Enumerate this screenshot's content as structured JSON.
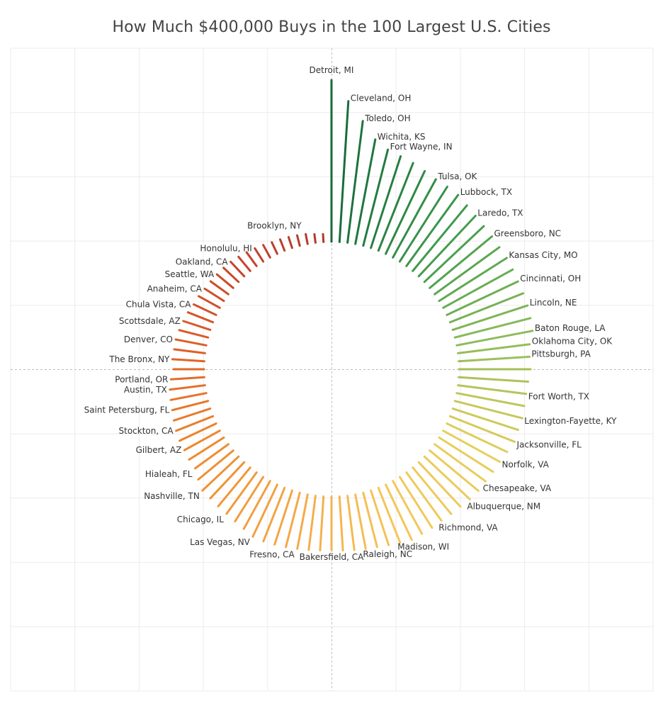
{
  "title": "How Much $400,000 Buys in the 100 Largest U.S. Cities",
  "chart_data": {
    "type": "radial-bar",
    "title": "How Much $400,000 Buys in the 100 Largest U.S. Cities",
    "xlabel": "",
    "ylabel": "",
    "grid": true,
    "legend": "none",
    "value_note": "relative bar length (no axis shown); ranked descending clockwise from top",
    "color_stops": [
      "#17693a",
      "#3d9a4c",
      "#8dbb5a",
      "#e6cf5c",
      "#f5c55a",
      "#f4a545",
      "#ee8a2e",
      "#de6126",
      "#c6452a",
      "#b03a2a"
    ],
    "bars": [
      {
        "rank": 1,
        "label": "Detroit, MI",
        "value": 228
      },
      {
        "rank": 2,
        "label": "Cleveland, OH",
        "value": 199
      },
      {
        "rank": 3,
        "label": "Toledo, OH",
        "value": 173
      },
      {
        "rank": 4,
        "label": "Wichita, KS",
        "value": 150
      },
      {
        "rank": 5,
        "label": "Fort Wayne, IN",
        "value": 140
      },
      {
        "rank": 6,
        "label": "",
        "value": 136
      },
      {
        "rank": 7,
        "label": "",
        "value": 133
      },
      {
        "rank": 8,
        "label": "",
        "value": 129
      },
      {
        "rank": 9,
        "label": "Tulsa, OK",
        "value": 126
      },
      {
        "rank": 10,
        "label": "",
        "value": 125
      },
      {
        "rank": 11,
        "label": "Lubbock, TX",
        "value": 124
      },
      {
        "rank": 12,
        "label": "",
        "value": 120
      },
      {
        "rank": 13,
        "label": "Laredo, TX",
        "value": 117
      },
      {
        "rank": 14,
        "label": "",
        "value": 115
      },
      {
        "rank": 15,
        "label": "Greensboro, NC",
        "value": 114
      },
      {
        "rank": 16,
        "label": "",
        "value": 113
      },
      {
        "rank": 17,
        "label": "Kansas City, MO",
        "value": 113
      },
      {
        "rank": 18,
        "label": "",
        "value": 112
      },
      {
        "rank": 19,
        "label": "Cincinnati, OH",
        "value": 111
      },
      {
        "rank": 20,
        "label": "",
        "value": 111
      },
      {
        "rank": 21,
        "label": "Lincoln, NE",
        "value": 111
      },
      {
        "rank": 22,
        "label": "",
        "value": 110
      },
      {
        "rank": 23,
        "label": "Baton Rouge, LA",
        "value": 109
      },
      {
        "rank": 24,
        "label": "Oklahoma City, OK",
        "value": 102
      },
      {
        "rank": 25,
        "label": "Pittsburgh, PA",
        "value": 100
      },
      {
        "rank": 26,
        "label": "",
        "value": 101
      },
      {
        "rank": 27,
        "label": "",
        "value": 98
      },
      {
        "rank": 28,
        "label": "Fort Worth, TX",
        "value": 97
      },
      {
        "rank": 29,
        "label": "",
        "value": 97
      },
      {
        "rank": 30,
        "label": "Lexington-Fayette, KY",
        "value": 98
      },
      {
        "rank": 31,
        "label": "",
        "value": 97
      },
      {
        "rank": 32,
        "label": "Jacksonville, FL",
        "value": 98
      },
      {
        "rank": 33,
        "label": "",
        "value": 94
      },
      {
        "rank": 34,
        "label": "Norfolk, VA",
        "value": 91
      },
      {
        "rank": 35,
        "label": "",
        "value": 90
      },
      {
        "rank": 36,
        "label": "Chesapeake, VA",
        "value": 89
      },
      {
        "rank": 37,
        "label": "",
        "value": 89
      },
      {
        "rank": 38,
        "label": "Albuquerque, NM",
        "value": 88
      },
      {
        "rank": 39,
        "label": "",
        "value": 86
      },
      {
        "rank": 40,
        "label": "",
        "value": 85
      },
      {
        "rank": 41,
        "label": "Richmond, VA",
        "value": 84
      },
      {
        "rank": 42,
        "label": "",
        "value": 85
      },
      {
        "rank": 43,
        "label": "",
        "value": 85
      },
      {
        "rank": 44,
        "label": "Madison, WI",
        "value": 86
      },
      {
        "rank": 45,
        "label": "",
        "value": 83
      },
      {
        "rank": 46,
        "label": "",
        "value": 81
      },
      {
        "rank": 47,
        "label": "Raleigh, NC",
        "value": 79
      },
      {
        "rank": 48,
        "label": "",
        "value": 78
      },
      {
        "rank": 49,
        "label": "",
        "value": 77
      },
      {
        "rank": 50,
        "label": "",
        "value": 76
      },
      {
        "rank": 51,
        "label": "Bakersfield, CA",
        "value": 75
      },
      {
        "rank": 52,
        "label": "",
        "value": 76
      },
      {
        "rank": 53,
        "label": "",
        "value": 77
      },
      {
        "rank": 54,
        "label": "Fresno, CA",
        "value": 78
      },
      {
        "rank": 55,
        "label": "",
        "value": 79
      },
      {
        "rank": 56,
        "label": "",
        "value": 80
      },
      {
        "rank": 57,
        "label": "",
        "value": 81
      },
      {
        "rank": 58,
        "label": "Las Vegas, NV",
        "value": 81
      },
      {
        "rank": 59,
        "label": "",
        "value": 77
      },
      {
        "rank": 60,
        "label": "",
        "value": 74
      },
      {
        "rank": 61,
        "label": "Chicago, IL",
        "value": 72
      },
      {
        "rank": 62,
        "label": "",
        "value": 71
      },
      {
        "rank": 63,
        "label": "",
        "value": 70
      },
      {
        "rank": 64,
        "label": "Nashville, TN",
        "value": 70
      },
      {
        "rank": 65,
        "label": "",
        "value": 64
      },
      {
        "rank": 66,
        "label": "Hialeah, FL",
        "value": 58
      },
      {
        "rank": 67,
        "label": "",
        "value": 58
      },
      {
        "rank": 68,
        "label": "Gilbert, AZ",
        "value": 57
      },
      {
        "rank": 69,
        "label": "",
        "value": 57
      },
      {
        "rank": 70,
        "label": "Stockton, CA",
        "value": 56
      },
      {
        "rank": 71,
        "label": "",
        "value": 54
      },
      {
        "rank": 72,
        "label": "Saint Petersburg, FL",
        "value": 52
      },
      {
        "rank": 73,
        "label": "",
        "value": 51
      },
      {
        "rank": 74,
        "label": "Austin, TX",
        "value": 50
      },
      {
        "rank": 75,
        "label": "Portland, OR",
        "value": 47
      },
      {
        "rank": 76,
        "label": "",
        "value": 43
      },
      {
        "rank": 77,
        "label": "The Bronx, NY",
        "value": 45
      },
      {
        "rank": 78,
        "label": "",
        "value": 44
      },
      {
        "rank": 79,
        "label": "Denver, CO",
        "value": 44
      },
      {
        "rank": 80,
        "label": "",
        "value": 42
      },
      {
        "rank": 81,
        "label": "Scottsdale, AZ",
        "value": 40
      },
      {
        "rank": 82,
        "label": "",
        "value": 38
      },
      {
        "rank": 83,
        "label": "Chula Vista, CA",
        "value": 35
      },
      {
        "rank": 84,
        "label": "",
        "value": 34
      },
      {
        "rank": 85,
        "label": "Anaheim, CA",
        "value": 32
      },
      {
        "rank": 86,
        "label": "",
        "value": 31
      },
      {
        "rank": 87,
        "label": "Seattle, WA",
        "value": 30
      },
      {
        "rank": 88,
        "label": "",
        "value": 29
      },
      {
        "rank": 89,
        "label": "Oakland, CA",
        "value": 28
      },
      {
        "rank": 90,
        "label": "",
        "value": 26
      },
      {
        "rank": 91,
        "label": "",
        "value": 24
      },
      {
        "rank": 92,
        "label": "Honolulu, HI",
        "value": 22
      },
      {
        "rank": 93,
        "label": "",
        "value": 20
      },
      {
        "rank": 94,
        "label": "",
        "value": 18
      },
      {
        "rank": 95,
        "label": "",
        "value": 17
      },
      {
        "rank": 96,
        "label": "",
        "value": 16
      },
      {
        "rank": 97,
        "label": "",
        "value": 15
      },
      {
        "rank": 98,
        "label": "Brooklyn, NY",
        "value": 14
      },
      {
        "rank": 99,
        "label": "",
        "value": 12
      },
      {
        "rank": 100,
        "label": "",
        "value": 11
      }
    ]
  }
}
